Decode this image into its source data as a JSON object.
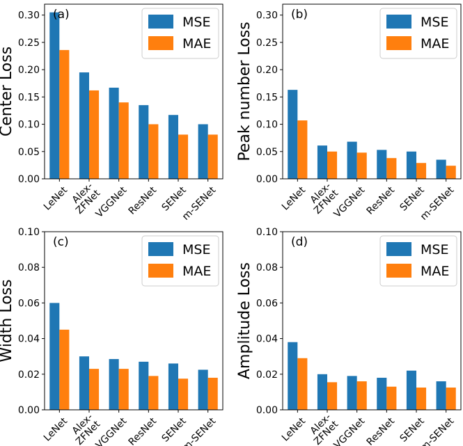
{
  "colors": {
    "mse": "#1f77b4",
    "mae": "#ff7f0e"
  },
  "chart_data": [
    {
      "type": "bar",
      "panel": "(a)",
      "ylabel": "Center Loss",
      "categories": [
        "LeNet",
        "Alex-ZFNet",
        "VGGNet",
        "ResNet",
        "SENet",
        "m-SENet"
      ],
      "category_lines": [
        [
          "LeNet"
        ],
        [
          "Alex-",
          "ZFNet"
        ],
        [
          "VGGNet"
        ],
        [
          "ResNet"
        ],
        [
          "SENet"
        ],
        [
          "m-SENet"
        ]
      ],
      "series": [
        {
          "name": "MSE",
          "values": [
            0.305,
            0.195,
            0.167,
            0.135,
            0.117,
            0.1
          ]
        },
        {
          "name": "MAE",
          "values": [
            0.236,
            0.162,
            0.14,
            0.1,
            0.081,
            0.081
          ]
        }
      ],
      "ylim": [
        0,
        0.32
      ],
      "yticks": [
        "0.00",
        "0.05",
        "0.10",
        "0.15",
        "0.20",
        "0.25",
        "0.30"
      ],
      "legend": [
        "MSE",
        "MAE"
      ],
      "legend_position": "top-right"
    },
    {
      "type": "bar",
      "panel": "(b)",
      "ylabel": "Peak number Loss",
      "categories": [
        "LeNet",
        "Alex-ZFNet",
        "VGGNet",
        "ResNet",
        "SENet",
        "m-SENet"
      ],
      "category_lines": [
        [
          "LeNet"
        ],
        [
          "Alex-",
          "ZFNet"
        ],
        [
          "VGGNet"
        ],
        [
          "ResNet"
        ],
        [
          "SENet"
        ],
        [
          "m-SENet"
        ]
      ],
      "series": [
        {
          "name": "MSE",
          "values": [
            0.163,
            0.061,
            0.068,
            0.053,
            0.05,
            0.035
          ]
        },
        {
          "name": "MAE",
          "values": [
            0.107,
            0.05,
            0.048,
            0.038,
            0.029,
            0.024
          ]
        }
      ],
      "ylim": [
        0,
        0.32
      ],
      "yticks": [
        "0.00",
        "0.05",
        "0.10",
        "0.15",
        "0.20",
        "0.25",
        "0.30"
      ],
      "legend": [
        "MSE",
        "MAE"
      ],
      "legend_position": "top-right"
    },
    {
      "type": "bar",
      "panel": "(c)",
      "ylabel": "Width Loss",
      "categories": [
        "LeNet",
        "Alex-ZFNet",
        "VGGNet",
        "ResNet",
        "SENet",
        "m-SENet"
      ],
      "category_lines": [
        [
          "LeNet"
        ],
        [
          "Alex-",
          "ZFNet"
        ],
        [
          "VGGNet"
        ],
        [
          "ResNet"
        ],
        [
          "SENet"
        ],
        [
          "m-SENet"
        ]
      ],
      "series": [
        {
          "name": "MSE",
          "values": [
            0.06,
            0.03,
            0.0285,
            0.027,
            0.026,
            0.0225
          ]
        },
        {
          "name": "MAE",
          "values": [
            0.045,
            0.023,
            0.023,
            0.019,
            0.0175,
            0.018
          ]
        }
      ],
      "ylim": [
        0,
        0.1
      ],
      "yticks": [
        "0.00",
        "0.02",
        "0.04",
        "0.06",
        "0.08",
        "0.10"
      ],
      "legend": [
        "MSE",
        "MAE"
      ],
      "legend_position": "top-right"
    },
    {
      "type": "bar",
      "panel": "(d)",
      "ylabel": "Amplitude Loss",
      "categories": [
        "LeNet",
        "Alex-ZFNet",
        "VGGNet",
        "ResNet",
        "SENet",
        "m-SENet"
      ],
      "category_lines": [
        [
          "LeNet"
        ],
        [
          "Alex-",
          "ZFNet"
        ],
        [
          "VGGNet"
        ],
        [
          "ResNet"
        ],
        [
          "SENet"
        ],
        [
          "m-SENet"
        ]
      ],
      "series": [
        {
          "name": "MSE",
          "values": [
            0.038,
            0.02,
            0.019,
            0.018,
            0.022,
            0.016
          ]
        },
        {
          "name": "MAE",
          "values": [
            0.029,
            0.0155,
            0.016,
            0.013,
            0.0125,
            0.0125
          ]
        }
      ],
      "ylim": [
        0,
        0.1
      ],
      "yticks": [
        "0.00",
        "0.02",
        "0.04",
        "0.06",
        "0.08",
        "0.10"
      ],
      "legend": [
        "MSE",
        "MAE"
      ],
      "legend_position": "top-right"
    }
  ]
}
